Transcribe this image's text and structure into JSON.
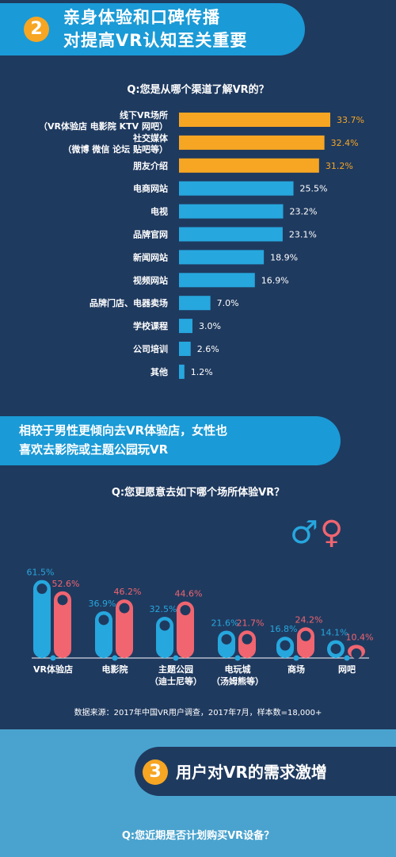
{
  "section2": {
    "number": "2",
    "title_line1": "亲身体验和口碑传播",
    "title_line2": "对提高VR认知至关重要"
  },
  "chart1_question": "Q:您是从哪个渠道了解VR的？",
  "mid_banner": {
    "line1": "相较于男性更倾向去VR体验店，女性也",
    "line2": "喜欢去影院或主题公园玩VR"
  },
  "chart2_question": "Q:您更愿意去如下哪个场所体验VR？",
  "legend": {
    "male_symbol": "♂",
    "female_symbol": "♀"
  },
  "source": "数据来源：2017年中国VR用户调查，2017年7月，样本数=18,000+",
  "section3": {
    "number": "3",
    "title": "用户对VR的需求激增"
  },
  "chart3_question": "Q:您近期是否计划购买VR设备？",
  "colors": {
    "background": "#1f3a5f",
    "highlight": "#f6a623",
    "blue": "#26a7de",
    "male": "#26a7de",
    "female": "#f06570"
  },
  "chart_data": [
    {
      "type": "bar",
      "orientation": "horizontal",
      "categories": [
        [
          "线下VR场所",
          "（VR体验店 电影院 KTV 网吧）"
        ],
        [
          "社交媒体",
          "（微博 微信 论坛 贴吧等）"
        ],
        [
          "朋友介绍"
        ],
        [
          "电商网站"
        ],
        [
          "电视"
        ],
        [
          "品牌官网"
        ],
        [
          "新闻网站"
        ],
        [
          "视频网站"
        ],
        [
          "品牌门店、电器卖场"
        ],
        [
          "学校课程"
        ],
        [
          "公司培训"
        ],
        [
          "其他"
        ]
      ],
      "values": [
        33.7,
        32.4,
        31.2,
        25.5,
        23.2,
        23.1,
        18.9,
        16.9,
        7.0,
        3.0,
        2.6,
        1.2
      ],
      "value_labels": [
        "33.7%",
        "32.4%",
        "31.2%",
        "25.5%",
        "23.2%",
        "23.1%",
        "18.9%",
        "16.9%",
        "7.0%",
        "3.0%",
        "2.6%",
        "1.2%"
      ],
      "highlighted_top": 3
    },
    {
      "type": "bar",
      "categories": [
        [
          "VR体验店"
        ],
        [
          "电影院"
        ],
        [
          "主题公园",
          "（迪士尼等）"
        ],
        [
          "电玩城",
          "（汤姆熊等）"
        ],
        [
          "商场"
        ],
        [
          "网吧"
        ]
      ],
      "series": [
        {
          "values": [
            61.5,
            36.9,
            32.5,
            21.6,
            16.8,
            14.1
          ],
          "labels": [
            "61.5%",
            "36.9%",
            "32.5%",
            "21.6%",
            "16.8%",
            "14.1%"
          ]
        },
        {
          "values": [
            52.6,
            46.2,
            44.6,
            21.7,
            24.2,
            10.4
          ],
          "labels": [
            "52.6%",
            "46.2%",
            "44.6%",
            "21.7%",
            "24.2%",
            "10.4%"
          ]
        }
      ]
    }
  ]
}
